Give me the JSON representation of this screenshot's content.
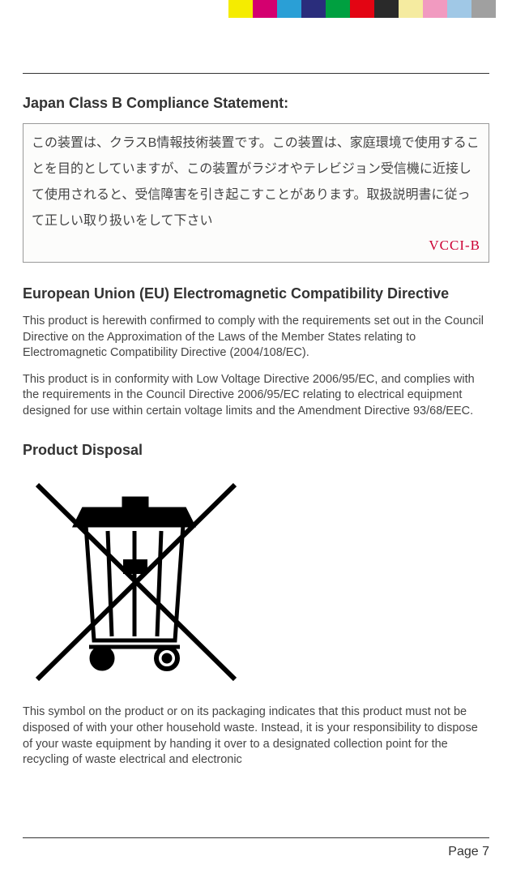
{
  "colorBar": {
    "colors": [
      "#f5ec00",
      "#d4006f",
      "#2a9fd6",
      "#2a2d7c",
      "#00a040",
      "#e30513",
      "#2a2a2a",
      "#f5eba0",
      "#f19ac0",
      "#a0c8e6",
      "#a0a0a0"
    ],
    "blockWidth": 30,
    "blockHeight": 22
  },
  "sections": {
    "japan": {
      "heading": "Japan Class B Compliance Statement:",
      "japaneseText": "この装置は、クラスB情報技術装置です。この装置は、家庭環境で使用することを目的としていますが、この装置がラジオやテレビジョン受信機に近接して使用されると、受信障害を引き起こすことがあります。取扱説明書に従って正しい取り扱いをして下さい",
      "vcciLabel": "VCCI-B"
    },
    "eu": {
      "heading": "European Union (EU) Electromagnetic Compatibility Directive",
      "para1": "This product is herewith confirmed to comply with the requirements set out in the Council Directive on the Approximation of the Laws of the Member States relating to Electromagnetic Compatibility Directive (2004/108/EC).",
      "para2": "This product is in conformity with Low Voltage Directive 2006/95/EC, and complies with the requirements in the Council Directive 2006/95/EC relating to electrical equipment designed for use within certain voltage limits and the Amendment Directive 93/68/EEC."
    },
    "disposal": {
      "heading": "Product Disposal",
      "para1": "This symbol on the product or on its packaging indicates that this product must not be disposed of with your other household waste. Instead, it is your responsibility to dispose of your waste equipment by handing it over to a designated collection point for the recycling of waste electrical and electronic"
    }
  },
  "footer": {
    "pageLabel": "Page 7"
  },
  "styles": {
    "bodyWidth": 632,
    "bodyHeight": 1088,
    "headingFontSize": 18,
    "paragraphFontSize": 14.5,
    "textColor": "#333333",
    "paragraphColor": "#454545",
    "vcciColor": "#cc0033"
  }
}
